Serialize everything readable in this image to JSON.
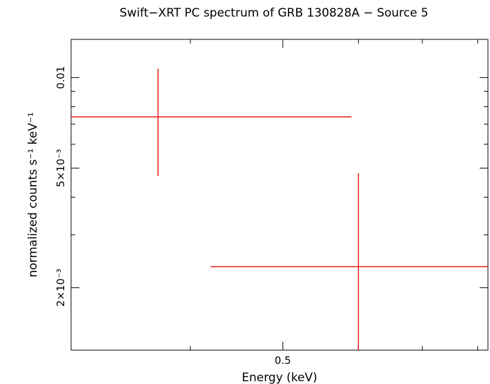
{
  "chart_data": {
    "type": "scatter",
    "title": "Swift−XRT PC spectrum of GRB 130828A − Source 5",
    "xlabel": "Energy (keV)",
    "ylabel": "normalized counts s⁻¹ keV⁻¹",
    "x_scale": "log",
    "y_scale": "log",
    "xlim": [
      0.3,
      0.82
    ],
    "ylim": [
      0.00124,
      0.0134
    ],
    "x_ticks": [
      {
        "value": 0.5,
        "label": "0.5"
      }
    ],
    "y_ticks": [
      {
        "value": 0.01,
        "label": "0.01"
      },
      {
        "value": 0.005,
        "label": "5×10⁻³"
      },
      {
        "value": 0.002,
        "label": "2×10⁻³"
      }
    ],
    "grid": false,
    "series": [
      {
        "color": "#e41a1c",
        "points": [
          {
            "x": 0.37,
            "x_low": 0.3,
            "x_high": 0.59,
            "y": 0.0074,
            "y_low": 0.0047,
            "y_high": 0.0107
          },
          {
            "x": 0.6,
            "x_low": 0.42,
            "x_high": 0.82,
            "y": 0.00235,
            "y_low": 0.00124,
            "y_high": 0.0048
          }
        ]
      }
    ]
  }
}
